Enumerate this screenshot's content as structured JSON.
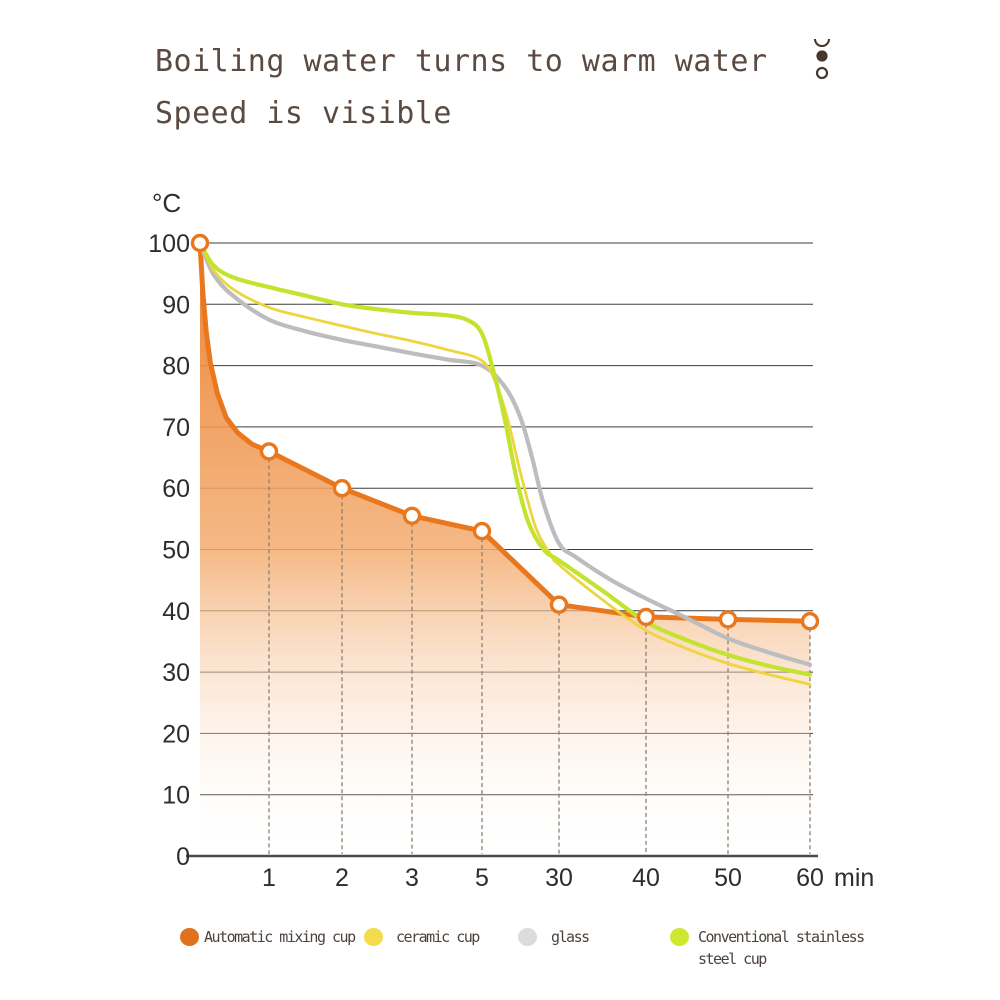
{
  "header": {
    "title_line1": "Boiling water turns to warm water",
    "title_line2": "Speed is visible",
    "menu_icon": "arc-and-dots-icon",
    "title_color": "#5B4A42",
    "icon_color": "#46382F"
  },
  "chart_data": {
    "type": "line",
    "title": "Boiling water turns to warm water, speed is visible",
    "ylabel": "°C",
    "x_axis_unit": "min",
    "categories": [
      "1",
      "2",
      "3",
      "5",
      "30",
      "40",
      "50",
      "60"
    ],
    "y_ticks": [
      0,
      10,
      20,
      30,
      40,
      50,
      60,
      70,
      80,
      90,
      100
    ],
    "ylim": [
      0,
      100
    ],
    "grid": "horizontal solid lines every 10°C; vertical dashed drop-lines under orange markers",
    "legend_position": "bottom",
    "start_value_0min_all_series": 100,
    "style": {
      "gridline_color": "#3E3E3E",
      "axis_color": "#4A4A4A",
      "droplines_color": "#8D7F71",
      "tick_label_color": "#2D2D2D",
      "area_gradient_top": "#EC7E2E",
      "area_gradient_bottom": "#FFFFFF"
    },
    "series": [
      {
        "name": "Automatic mixing cup",
        "color": "#E8771E",
        "line_width": 5,
        "marker": "open-circle",
        "area_fill": true,
        "values_at_ticks": [
          66,
          60,
          55.5,
          53,
          41,
          39,
          38.6,
          38.3
        ],
        "curve_samples": [
          [
            0,
            100
          ],
          [
            0.04,
            92
          ],
          [
            0.09,
            85.5
          ],
          [
            0.15,
            80.5
          ],
          [
            0.25,
            75.5
          ],
          [
            0.38,
            71.5
          ],
          [
            0.55,
            69
          ],
          [
            0.75,
            67.2
          ],
          [
            1,
            66
          ],
          [
            2,
            60
          ],
          [
            3,
            55.5
          ],
          [
            4,
            53
          ],
          [
            5,
            41
          ],
          [
            6,
            39
          ],
          [
            7,
            38.6
          ],
          [
            8,
            38.3
          ]
        ],
        "markers_at": [
          [
            0,
            100
          ],
          [
            1,
            66
          ],
          [
            2,
            60
          ],
          [
            3,
            55.5
          ],
          [
            4,
            53
          ],
          [
            5,
            41
          ],
          [
            6,
            39
          ],
          [
            7,
            38.6
          ],
          [
            8,
            38.3
          ]
        ]
      },
      {
        "name": "ceramic cup",
        "color": "#EDD53F",
        "line_width": 2.8,
        "marker": "none",
        "area_fill": false,
        "values_at_ticks": [
          89.5,
          86.5,
          84,
          81,
          47.5,
          36.8,
          31.4,
          28
        ],
        "curve_samples": [
          [
            0,
            100
          ],
          [
            0.2,
            95.5
          ],
          [
            0.5,
            92.3
          ],
          [
            1,
            89.5
          ],
          [
            1.5,
            87.9
          ],
          [
            2,
            86.5
          ],
          [
            2.5,
            85.2
          ],
          [
            3,
            84
          ],
          [
            3.5,
            82.6
          ],
          [
            4,
            80.8
          ],
          [
            4.2,
            76.5
          ],
          [
            4.35,
            70.5
          ],
          [
            4.5,
            62.5
          ],
          [
            4.7,
            53.5
          ],
          [
            4.9,
            49
          ],
          [
            5,
            47.5
          ],
          [
            5.5,
            41.8
          ],
          [
            6,
            36.8
          ],
          [
            6.5,
            33.8
          ],
          [
            7,
            31.4
          ],
          [
            7.5,
            29.6
          ],
          [
            8,
            28
          ]
        ]
      },
      {
        "name": "glass",
        "color": "#BDBDBD",
        "line_width": 4.2,
        "marker": "none",
        "area_fill": false,
        "values_at_ticks": [
          87.5,
          84.2,
          82,
          80,
          51,
          42,
          35.5,
          31.2
        ],
        "curve_samples": [
          [
            0,
            100
          ],
          [
            0.2,
            94.8
          ],
          [
            0.5,
            91.2
          ],
          [
            1,
            87.5
          ],
          [
            1.5,
            85.6
          ],
          [
            2,
            84.2
          ],
          [
            2.5,
            83.1
          ],
          [
            3,
            82
          ],
          [
            3.5,
            81
          ],
          [
            4,
            80
          ],
          [
            4.3,
            76.5
          ],
          [
            4.5,
            71.5
          ],
          [
            4.65,
            65
          ],
          [
            4.8,
            57.5
          ],
          [
            5,
            51
          ],
          [
            5.2,
            48.7
          ],
          [
            5.6,
            45
          ],
          [
            6,
            42
          ],
          [
            6.5,
            38.8
          ],
          [
            7,
            35.5
          ],
          [
            7.5,
            33.2
          ],
          [
            8,
            31.2
          ]
        ]
      },
      {
        "name": "Conventional stainless steel cup",
        "color": "#C3E32E",
        "line_width": 4.2,
        "marker": "none",
        "area_fill": false,
        "values_at_ticks": [
          92.8,
          90,
          88.6,
          85.2,
          48.2,
          38.2,
          32.8,
          29.6
        ],
        "curve_samples": [
          [
            0,
            100
          ],
          [
            0.2,
            96.3
          ],
          [
            0.5,
            94.3
          ],
          [
            1,
            92.8
          ],
          [
            1.5,
            91.4
          ],
          [
            2,
            90
          ],
          [
            2.5,
            89.2
          ],
          [
            3,
            88.6
          ],
          [
            3.5,
            88.2
          ],
          [
            3.8,
            87.4
          ],
          [
            4,
            85.2
          ],
          [
            4.15,
            79
          ],
          [
            4.3,
            71
          ],
          [
            4.45,
            61.5
          ],
          [
            4.6,
            54.5
          ],
          [
            4.8,
            50
          ],
          [
            5,
            48.2
          ],
          [
            5.5,
            43.3
          ],
          [
            6,
            38.2
          ],
          [
            6.5,
            35.2
          ],
          [
            7,
            32.8
          ],
          [
            7.5,
            31
          ],
          [
            8,
            29.6
          ]
        ]
      }
    ],
    "curve_samples_note": "cx coordinate: 0 = left axis (0 min, 100°C); integers 1-8 = x-axis tick positions 1,2,3,5,30,40,50,60 min"
  },
  "legend": {
    "items": [
      {
        "label": "Automatic mixing cup",
        "label_lines": [
          "Automatic mixing cup"
        ],
        "color": "#E0711F"
      },
      {
        "label": "ceramic cup",
        "label_lines": [
          "ceramic cup"
        ],
        "color": "#F2DC4E"
      },
      {
        "label": "glass",
        "label_lines": [
          "glass"
        ],
        "color": "#DCDCDC"
      },
      {
        "label": "Conventional stainless steel cup",
        "label_lines": [
          "Conventional stainless",
          "steel cup"
        ],
        "color": "#CDE82E"
      }
    ]
  }
}
